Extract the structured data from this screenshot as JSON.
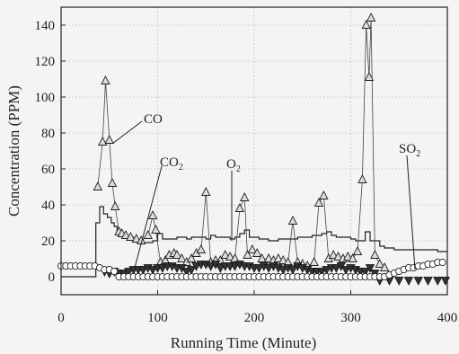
{
  "chart_data": {
    "type": "line",
    "xlabel": "Running Time (Minute)",
    "ylabel": "Concentration (PPM)",
    "xlim": [
      0,
      400
    ],
    "ylim": [
      -10,
      150
    ],
    "xticks": [
      0,
      100,
      200,
      300,
      400
    ],
    "yticks": [
      0,
      20,
      40,
      60,
      80,
      100,
      120,
      140
    ],
    "grid": true,
    "legend": "none",
    "annotations": [
      {
        "label": "CO",
        "main": "CO",
        "sub": ""
      },
      {
        "label": "CO2",
        "main": "CO",
        "sub": "2"
      },
      {
        "label": "O2",
        "main": "O",
        "sub": "2"
      },
      {
        "label": "SO2",
        "main": "SO",
        "sub": "2"
      }
    ],
    "series": [
      {
        "marker": "line",
        "x": [
          0,
          34,
          36,
          40,
          44,
          48,
          52,
          55,
          58,
          62,
          66,
          70,
          75,
          80,
          85,
          90,
          95,
          100,
          105,
          110,
          115,
          120,
          125,
          130,
          135,
          140,
          145,
          150,
          155,
          160,
          165,
          170,
          175,
          180,
          185,
          190,
          195,
          200,
          205,
          210,
          215,
          220,
          225,
          230,
          235,
          240,
          245,
          250,
          255,
          260,
          265,
          270,
          275,
          280,
          285,
          290,
          295,
          300,
          305,
          310,
          315,
          320,
          325,
          330,
          335,
          340,
          345,
          350,
          360,
          370,
          380,
          390,
          400
        ],
        "y": [
          0,
          0,
          30,
          39,
          35,
          33,
          30,
          28,
          25,
          23,
          22,
          22,
          21,
          20,
          19,
          19,
          20,
          24,
          21,
          21,
          21,
          22,
          22,
          21,
          22,
          22,
          22,
          21,
          23,
          22,
          22,
          22,
          21,
          22,
          24,
          26,
          22,
          22,
          21,
          21,
          20,
          20,
          21,
          21,
          21,
          21,
          22,
          22,
          22,
          23,
          23,
          24,
          25,
          23,
          22,
          22,
          22,
          21,
          20,
          20,
          25,
          20,
          20,
          17,
          16,
          16,
          15,
          15,
          15,
          15,
          15,
          14,
          14
        ]
      },
      {
        "marker": "triangle-up",
        "x": [
          38,
          43,
          46,
          50,
          53,
          56,
          60,
          63,
          67,
          72,
          78,
          83,
          90,
          95,
          98,
          103,
          108,
          112,
          117,
          120,
          125,
          130,
          135,
          140,
          145,
          150,
          155,
          160,
          165,
          170,
          175,
          180,
          185,
          190,
          193,
          198,
          203,
          208,
          215,
          220,
          225,
          230,
          235,
          240,
          245,
          250,
          255,
          262,
          267,
          272,
          277,
          282,
          287,
          292,
          297,
          302,
          307,
          312,
          316,
          319,
          321,
          325,
          330,
          335
        ],
        "y": [
          50,
          75,
          109,
          76,
          52,
          39,
          25,
          24,
          23,
          22,
          21,
          20,
          23,
          34,
          26,
          8,
          9,
          12,
          13,
          12,
          10,
          8,
          10,
          13,
          15,
          47,
          8,
          9,
          9,
          12,
          11,
          10,
          38,
          44,
          12,
          15,
          13,
          10,
          10,
          9,
          10,
          9,
          8,
          31,
          8,
          7,
          6,
          8,
          41,
          45,
          10,
          12,
          11,
          10,
          11,
          10,
          14,
          54,
          140,
          111,
          144,
          12,
          7,
          5
        ]
      },
      {
        "marker": "triangle-down",
        "x": [
          45,
          50,
          55,
          60,
          65,
          70,
          75,
          80,
          85,
          90,
          95,
          100,
          105,
          110,
          115,
          120,
          125,
          130,
          135,
          140,
          145,
          150,
          155,
          160,
          165,
          170,
          175,
          180,
          185,
          190,
          195,
          200,
          205,
          210,
          215,
          220,
          225,
          230,
          235,
          240,
          245,
          250,
          255,
          260,
          265,
          270,
          275,
          280,
          285,
          290,
          295,
          300,
          305,
          310,
          315,
          320,
          325,
          330,
          340,
          350,
          360,
          370,
          380,
          390,
          398
        ],
        "y": [
          3,
          2,
          3,
          2,
          2,
          3,
          4,
          4,
          4,
          5,
          4,
          5,
          5,
          6,
          6,
          5,
          5,
          3,
          4,
          6,
          7,
          7,
          6,
          7,
          5,
          6,
          6,
          6,
          7,
          6,
          6,
          5,
          5,
          6,
          5,
          6,
          5,
          4,
          5,
          4,
          6,
          5,
          4,
          3,
          3,
          3,
          4,
          5,
          5,
          6,
          4,
          5,
          4,
          3,
          3,
          5,
          2,
          -2,
          -2,
          -2,
          -2,
          -2,
          -2,
          -2,
          -2
        ]
      },
      {
        "marker": "circle",
        "x": [
          0,
          5,
          10,
          15,
          20,
          25,
          30,
          35,
          40,
          45,
          50,
          55,
          60,
          65,
          70,
          75,
          80,
          85,
          90,
          95,
          100,
          105,
          110,
          115,
          120,
          125,
          130,
          135,
          140,
          145,
          150,
          155,
          160,
          165,
          170,
          175,
          180,
          185,
          190,
          195,
          200,
          205,
          210,
          215,
          220,
          225,
          230,
          235,
          240,
          245,
          250,
          255,
          260,
          265,
          270,
          275,
          280,
          285,
          290,
          295,
          300,
          305,
          310,
          315,
          320,
          325,
          330,
          335,
          340,
          345,
          350,
          355,
          360,
          365,
          370,
          375,
          380,
          385,
          390,
          395
        ],
        "y": [
          6,
          6,
          6,
          6,
          6,
          6,
          6,
          6,
          5,
          4,
          4,
          3,
          0,
          0,
          0,
          0,
          0,
          0,
          0,
          0,
          0,
          0,
          0,
          0,
          0,
          0,
          0,
          0,
          0,
          0,
          0,
          0,
          0,
          0,
          0,
          0,
          0,
          0,
          0,
          0,
          0,
          0,
          0,
          0,
          0,
          0,
          0,
          0,
          0,
          0,
          0,
          0,
          0,
          0,
          0,
          0,
          0,
          0,
          0,
          0,
          0,
          0,
          0,
          0,
          0,
          0,
          0,
          0,
          1,
          2,
          3,
          4,
          5,
          5,
          6,
          6,
          7,
          7,
          8,
          8
        ]
      }
    ]
  }
}
